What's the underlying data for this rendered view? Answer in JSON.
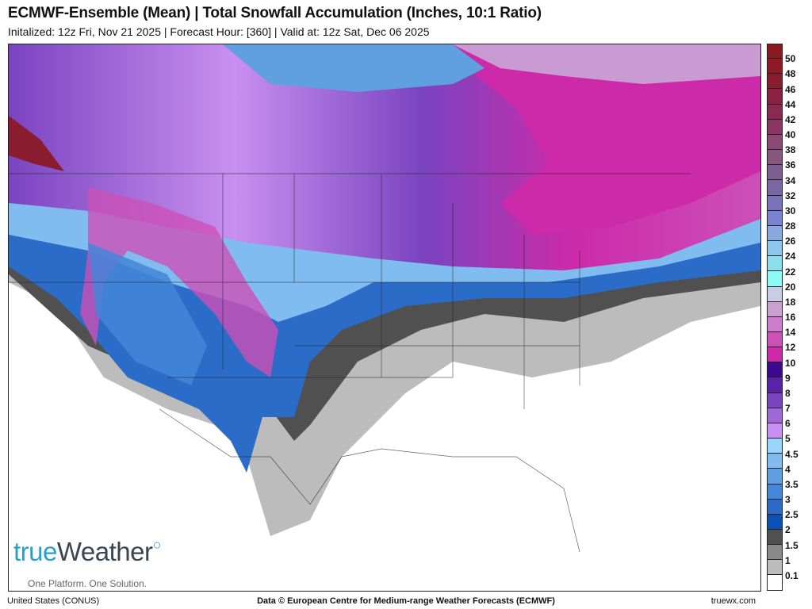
{
  "header": {
    "title": "ECMWF-Ensemble (Mean) | Total Snowfall Accumulation (Inches, 10:1 Ratio)",
    "subtitle": "Initalized: 12z Fri, Nov 21 2025 | Forecast Hour: [360] | Valid at: 12z Sat, Dec 06 2025"
  },
  "logo": {
    "brand_part1": "true",
    "brand_part2": "Weather",
    "tagline": "One Platform. One Solution."
  },
  "legend": {
    "labels": [
      "50",
      "48",
      "46",
      "44",
      "42",
      "40",
      "38",
      "36",
      "34",
      "32",
      "30",
      "28",
      "26",
      "24",
      "22",
      "20",
      "18",
      "16",
      "14",
      "12",
      "10",
      "9",
      "8",
      "7",
      "6",
      "5",
      "4.5",
      "4",
      "3.5",
      "3",
      "2.5",
      "2",
      "1.5",
      "1",
      "0.1"
    ],
    "colors": [
      "#8b1a1f",
      "#8d1a24",
      "#8a1c30",
      "#8b2042",
      "#8a2a52",
      "#8c3662",
      "#8a4a74",
      "#86587f",
      "#7e5e90",
      "#7a66a2",
      "#7a72b8",
      "#7a82d2",
      "#88a8e2",
      "#8cc6ec",
      "#8adeee",
      "#8cfcf6",
      "#c8cce4",
      "#c8a0d2",
      "#cc7cc8",
      "#cc50b8",
      "#cc2aa8",
      "#3c0890",
      "#5a22a8",
      "#7a44c0",
      "#a068d8",
      "#c890f0",
      "#98d4fc",
      "#80bcf0",
      "#60a0e0",
      "#4486d8",
      "#2a6cc8",
      "#0c50b8",
      "#505050",
      "#888888",
      "#bcbcbc",
      "#ffffff"
    ]
  },
  "footer": {
    "region": "United States (CONUS)",
    "credit": "Data © European Centre for Medium-range Weather Forecasts (ECMWF)",
    "site": "truewx.com"
  }
}
